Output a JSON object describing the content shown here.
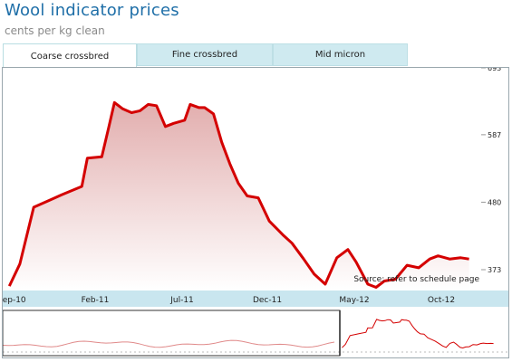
{
  "header": {
    "title": "Wool indicator prices",
    "subtitle": "cents per kg clean"
  },
  "tabs": [
    {
      "label": "Coarse crossbred",
      "active": true
    },
    {
      "label": "Fine crossbred",
      "active": false
    },
    {
      "label": "Mid micron",
      "active": false
    }
  ],
  "chart_data": {
    "type": "area",
    "ylabel": "",
    "xlabel": "",
    "y_ticks": [
      "373",
      "480",
      "587",
      "693"
    ],
    "y_tick_values": [
      373,
      480,
      587,
      693
    ],
    "x_ticks": [
      "Sep-10",
      "Feb-11",
      "Jul-11",
      "Dec-11",
      "May-12",
      "Oct-12"
    ],
    "annotation": "Source: refer to schedule page",
    "colors": {
      "line": "#d40000",
      "fill_top": "#e5b7b7",
      "fill_bottom": "#ffffff",
      "axis_bar": "#c9e6ef",
      "nav_line": "#e08a8a"
    },
    "series": [
      {
        "x": [
          "2010-09-01",
          "2010-09-20",
          "2010-10-15",
          "2010-11-15",
          "2010-12-05",
          "2011-01-10",
          "2011-01-20",
          "2011-02-15",
          "2011-02-28",
          "2011-03-10",
          "2011-03-25",
          "2011-04-10",
          "2011-04-25",
          "2011-05-10",
          "2011-05-25",
          "2011-06-10",
          "2011-06-25",
          "2011-07-15",
          "2011-07-25",
          "2011-08-10",
          "2011-08-20",
          "2011-09-05",
          "2011-09-20",
          "2011-10-05",
          "2011-10-20",
          "2011-11-05",
          "2011-11-25",
          "2011-12-15",
          "2012-01-10",
          "2012-01-25",
          "2012-02-15",
          "2012-03-05",
          "2012-03-25",
          "2012-04-15",
          "2012-05-05",
          "2012-05-20",
          "2012-06-10",
          "2012-06-25",
          "2012-07-10",
          "2012-07-30",
          "2012-08-20",
          "2012-09-10",
          "2012-09-30",
          "2012-10-15",
          "2012-11-05",
          "2012-11-25",
          "2012-12-10"
        ],
        "values": [
          347,
          382,
          472,
          484,
          492,
          505,
          550,
          552,
          600,
          638,
          628,
          622,
          625,
          635,
          633,
          600,
          605,
          610,
          635,
          630,
          630,
          620,
          575,
          540,
          510,
          490,
          487,
          450,
          427,
          415,
          390,
          366,
          350,
          392,
          405,
          385,
          350,
          345,
          355,
          358,
          380,
          376,
          390,
          395,
          390,
          392,
          390
        ]
      }
    ],
    "ylim": [
      340,
      693
    ],
    "xlim": [
      "2010-08-20",
      "2013-01-01"
    ]
  }
}
